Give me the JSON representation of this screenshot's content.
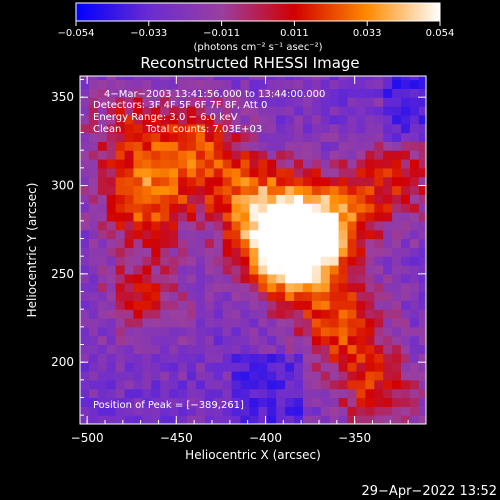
{
  "chart_data": {
    "type": "heatmap",
    "title": "Reconstructed RHESSI Image",
    "colorbar": {
      "ticks": [
        "-0.054",
        "-0.033",
        "-0.011",
        "0.011",
        "0.033",
        "0.054"
      ],
      "range": [
        -0.054,
        0.054
      ],
      "unit_label": "(photons cm⁻² s⁻¹ asec⁻²)",
      "colors": [
        "#0000ff",
        "#6a2bd0",
        "#9a3fa0",
        "#d20000",
        "#ff8a00",
        "#ffffff"
      ]
    },
    "xlabel": "Heliocentric X (arcsec)",
    "ylabel": "Heliocentric Y (arcsec)",
    "xlim": [
      -504,
      -310
    ],
    "ylim": [
      165,
      362
    ],
    "x_ticks": [
      "−500",
      "−450",
      "−400",
      "−350"
    ],
    "x_tick_values": [
      -500,
      -450,
      -400,
      -350
    ],
    "y_ticks": [
      "200",
      "250",
      "300",
      "350"
    ],
    "y_tick_values": [
      200,
      250,
      300,
      350
    ],
    "annotations": [
      "4−Mar−2003 13:41:56.000 to 13:44:00.000",
      "Detectors: 3F 4F 5F 6F 7F 8F, Att 0",
      "Energy Range: 3.0 − 6.0 keV",
      "Clean",
      "Total counts: 7.03E+03"
    ],
    "peak_label": "Position of Peak = [−389,261]",
    "peak_position": [
      -389,
      261
    ],
    "sources": [
      {
        "x": -389,
        "y": 261,
        "w": 1.0
      },
      {
        "x": -370,
        "y": 278,
        "w": 0.55
      },
      {
        "x": -410,
        "y": 290,
        "w": 0.45
      },
      {
        "x": -470,
        "y": 290,
        "w": 0.5
      },
      {
        "x": -440,
        "y": 320,
        "w": 0.4
      },
      {
        "x": -360,
        "y": 220,
        "w": 0.45
      },
      {
        "x": -480,
        "y": 330,
        "w": 0.3
      },
      {
        "x": -330,
        "y": 300,
        "w": 0.35
      },
      {
        "x": -340,
        "y": 180,
        "w": 0.35
      },
      {
        "x": -470,
        "y": 235,
        "w": 0.3
      }
    ],
    "grid": false
  },
  "footer": {
    "timestamp": "29−Apr−2022 13:52"
  }
}
